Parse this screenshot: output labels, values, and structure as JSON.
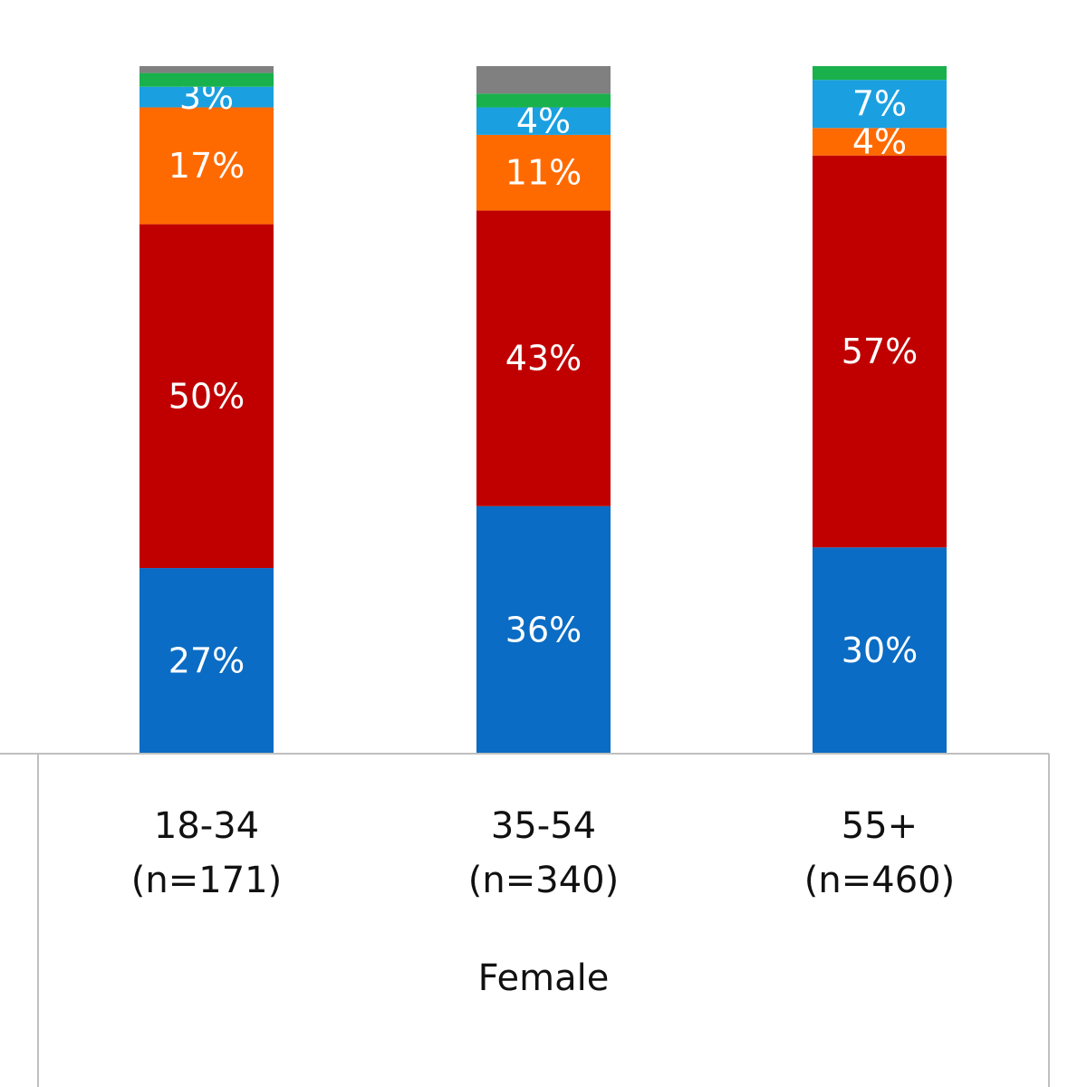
{
  "chart_data": {
    "type": "bar",
    "stacked": true,
    "group_label": "Female",
    "categories": [
      "18-34",
      "35-54",
      "55+"
    ],
    "sample_sizes": [
      "(n=171)",
      "(n=340)",
      "(n=460)"
    ],
    "ylim": [
      0,
      100
    ],
    "series": [
      {
        "name": "blue",
        "color": "#0a6cc4",
        "values": [
          27,
          36,
          30
        ],
        "labels": [
          "27%",
          "36%",
          "30%"
        ]
      },
      {
        "name": "dark-red",
        "color": "#c00000",
        "values": [
          50,
          43,
          57
        ],
        "labels": [
          "50%",
          "43%",
          "57%"
        ]
      },
      {
        "name": "orange",
        "color": "#ff6a00",
        "values": [
          17,
          11,
          4
        ],
        "labels": [
          "17%",
          "11%",
          "4%"
        ]
      },
      {
        "name": "light-blue",
        "color": "#1aa0e0",
        "values": [
          3,
          4,
          7
        ],
        "labels": [
          "3%",
          "4%",
          "7%"
        ]
      },
      {
        "name": "green",
        "color": "#19b14c",
        "values": [
          2,
          2,
          2
        ],
        "labels": [
          "",
          "",
          ""
        ]
      },
      {
        "name": "gray",
        "color": "#808080",
        "values": [
          1,
          4,
          0
        ],
        "labels": [
          "",
          "",
          ""
        ]
      }
    ]
  }
}
